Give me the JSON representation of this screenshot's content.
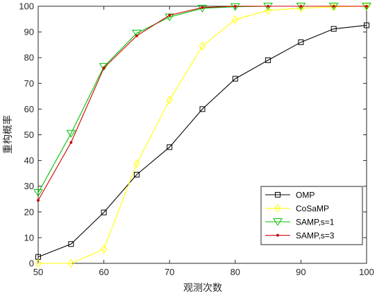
{
  "chart_data": {
    "type": "line",
    "title": "",
    "xlabel": "观测次数",
    "ylabel": "重构概率",
    "xlim": [
      50,
      100
    ],
    "ylim": [
      0,
      100
    ],
    "xticks": [
      "50",
      "60",
      "70",
      "80",
      "90",
      "100"
    ],
    "yticks": [
      "0",
      "10",
      "20",
      "30",
      "40",
      "50",
      "60",
      "70",
      "80",
      "90",
      "100"
    ],
    "grid": false,
    "legend_position": "bottom-right",
    "x": [
      50,
      55,
      60,
      65,
      70,
      75,
      80,
      85,
      90,
      95,
      100
    ],
    "series": [
      {
        "name": "OMP",
        "color": "#000000",
        "marker": "square",
        "values": [
          2.5,
          7.5,
          19.8,
          34.5,
          45.2,
          60,
          71.8,
          79,
          86,
          91.2,
          92.6
        ]
      },
      {
        "name": "CoSaMP",
        "color": "#ffff00",
        "marker": "diamond",
        "values": [
          0,
          0,
          5.5,
          38.8,
          63.5,
          84.5,
          94.8,
          98.4,
          99.2,
          99.8,
          100
        ]
      },
      {
        "name": "SAMP,s=1",
        "color": "#00c000",
        "marker": "triangle-down",
        "values": [
          27.5,
          50.5,
          76.5,
          89.5,
          95.8,
          99.2,
          99.8,
          100,
          100,
          100,
          100
        ]
      },
      {
        "name": "SAMP,s=3",
        "color": "#cc0000",
        "marker": "dot",
        "values": [
          24.5,
          47,
          76,
          88.5,
          96.5,
          99.5,
          100,
          100,
          100,
          100,
          100
        ]
      }
    ]
  }
}
